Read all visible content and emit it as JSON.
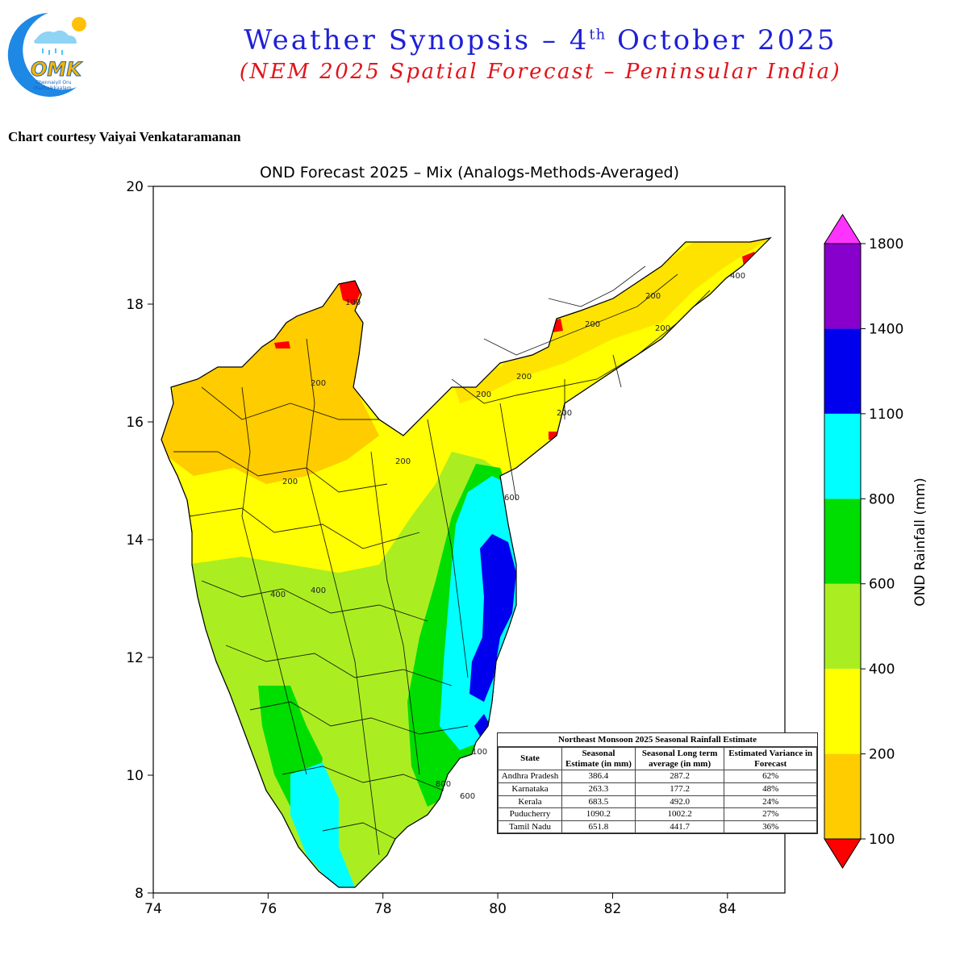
{
  "header": {
    "title_main": "Weather Synopsis – 4",
    "title_sup": "th",
    "title_tail": " October 2025",
    "subtitle": "(NEM 2025 Spatial Forecast – Peninsular India)",
    "credit": "Chart courtesy Vaiyai Venkataramanan"
  },
  "logo": {
    "text": "OMK",
    "tagline_1": "Chennaiyil Oru",
    "tagline_2": "Mazhaikkaalam"
  },
  "chart_data": {
    "type": "map",
    "title": "OND Forecast 2025 – Mix (Analogs-Methods-Averaged)",
    "xlim": [
      74,
      85
    ],
    "ylim": [
      8,
      20
    ],
    "x_ticks": [
      "74",
      "76",
      "78",
      "80",
      "82",
      "84"
    ],
    "y_ticks": [
      "8",
      "10",
      "12",
      "14",
      "16",
      "18",
      "20"
    ],
    "colorbar": {
      "label": "OND Rainfall (mm)",
      "levels": [
        "100",
        "200",
        "400",
        "600",
        "800",
        "1100",
        "1400",
        "1800"
      ],
      "colors": [
        "#ffcc00",
        "#ffff00",
        "#aaee22",
        "#00dd00",
        "#00ffff",
        "#0000ee",
        "#8800cc"
      ],
      "under_color": "#ff0000",
      "over_color": "#ff33ff"
    },
    "contour_labels": [
      "100",
      "200",
      "200",
      "200",
      "200",
      "200",
      "200",
      "200",
      "200",
      "200",
      "400",
      "400",
      "400",
      "600",
      "600",
      "800",
      "100"
    ]
  },
  "estimate_table": {
    "title": "Northeast Monsoon 2025 Seasonal Rainfall Estimate",
    "headers": [
      "State",
      "Seasonal Estimate (in mm)",
      "Seasonal Long term average (in mm)",
      "Estimated Variance in Forecast"
    ],
    "rows": [
      [
        "Andhra Pradesh",
        "386.4",
        "287.2",
        "62%"
      ],
      [
        "Karnataka",
        "263.3",
        "177.2",
        "48%"
      ],
      [
        "Kerala",
        "683.5",
        "492.0",
        "24%"
      ],
      [
        "Puducherry",
        "1090.2",
        "1002.2",
        "27%"
      ],
      [
        "Tamil Nadu",
        "651.8",
        "441.7",
        "36%"
      ]
    ]
  }
}
